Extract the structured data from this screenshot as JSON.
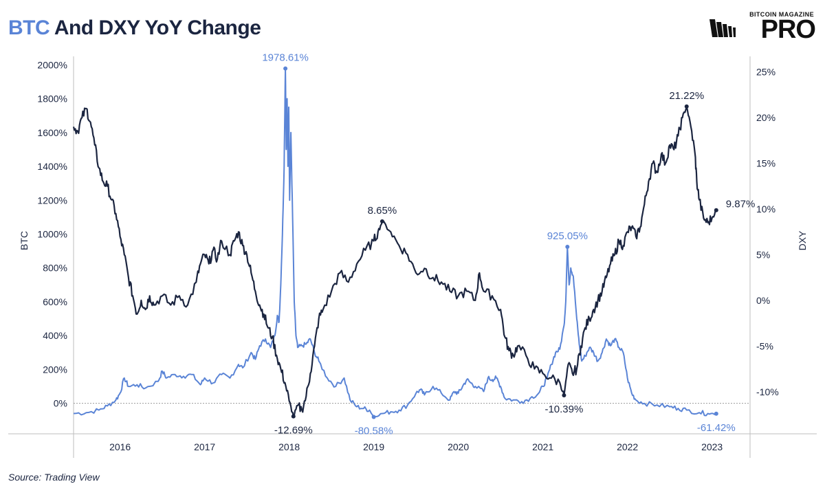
{
  "title": {
    "accent": "BTC",
    "rest": " And DXY YoY Change"
  },
  "logo": {
    "small": "BITCOIN MAGAZINE",
    "big": "PRO"
  },
  "source": "Source: Trading View",
  "colors": {
    "btc": "#5a84d6",
    "dxy": "#1b2540",
    "grid": "#bdbdbd"
  },
  "chart_data": {
    "type": "line",
    "title": "BTC And DXY YoY Change",
    "xlabel": "",
    "ylabel_left": "BTC",
    "ylabel_right": "DXY",
    "x_ticks": [
      "2016",
      "2017",
      "2018",
      "2019",
      "2020",
      "2021",
      "2022",
      "2023"
    ],
    "x_range": [
      2015.45,
      2023.45
    ],
    "y_left_ticks": [
      "0%",
      "200%",
      "400%",
      "600%",
      "800%",
      "1000%",
      "1200%",
      "1400%",
      "1600%",
      "1800%",
      "2000%"
    ],
    "y_left_range": [
      -180,
      2050
    ],
    "y_right_ticks": [
      "-10%",
      "-5%",
      "0%",
      "5%",
      "10%",
      "15%",
      "20%",
      "25%"
    ],
    "y_right_range": [
      -14.6,
      26.7
    ],
    "zero_line": true,
    "series": [
      {
        "name": "BTC",
        "axis": "left",
        "points": [
          [
            2015.45,
            -60
          ],
          [
            2015.6,
            -55
          ],
          [
            2015.75,
            -40
          ],
          [
            2015.85,
            -15
          ],
          [
            2015.95,
            20
          ],
          [
            2016.0,
            60
          ],
          [
            2016.05,
            150
          ],
          [
            2016.1,
            100
          ],
          [
            2016.2,
            110
          ],
          [
            2016.3,
            90
          ],
          [
            2016.45,
            130
          ],
          [
            2016.5,
            190
          ],
          [
            2016.55,
            150
          ],
          [
            2016.65,
            170
          ],
          [
            2016.75,
            160
          ],
          [
            2016.85,
            170
          ],
          [
            2016.95,
            110
          ],
          [
            2017.0,
            150
          ],
          [
            2017.1,
            120
          ],
          [
            2017.2,
            170
          ],
          [
            2017.3,
            150
          ],
          [
            2017.4,
            230
          ],
          [
            2017.45,
            210
          ],
          [
            2017.55,
            300
          ],
          [
            2017.6,
            260
          ],
          [
            2017.65,
            340
          ],
          [
            2017.72,
            380
          ],
          [
            2017.78,
            330
          ],
          [
            2017.83,
            400
          ],
          [
            2017.86,
            520
          ],
          [
            2017.88,
            480
          ],
          [
            2017.9,
            700
          ],
          [
            2017.92,
            1000
          ],
          [
            2017.94,
            1400
          ],
          [
            2017.955,
            1978.61
          ],
          [
            2017.965,
            1500
          ],
          [
            2017.975,
            1800
          ],
          [
            2017.985,
            1400
          ],
          [
            2017.995,
            1750
          ],
          [
            2018.005,
            1200
          ],
          [
            2018.02,
            1600
          ],
          [
            2018.04,
            1100
          ],
          [
            2018.06,
            600
          ],
          [
            2018.08,
            400
          ],
          [
            2018.1,
            330
          ],
          [
            2018.15,
            340
          ],
          [
            2018.2,
            350
          ],
          [
            2018.25,
            380
          ],
          [
            2018.3,
            300
          ],
          [
            2018.35,
            250
          ],
          [
            2018.45,
            150
          ],
          [
            2018.55,
            100
          ],
          [
            2018.65,
            150
          ],
          [
            2018.72,
            20
          ],
          [
            2018.8,
            -20
          ],
          [
            2018.88,
            -30
          ],
          [
            2018.95,
            -40
          ],
          [
            2019.0,
            -80.58
          ],
          [
            2019.1,
            -60
          ],
          [
            2019.2,
            -50
          ],
          [
            2019.3,
            -40
          ],
          [
            2019.4,
            -10
          ],
          [
            2019.5,
            60
          ],
          [
            2019.55,
            80
          ],
          [
            2019.6,
            50
          ],
          [
            2019.7,
            100
          ],
          [
            2019.8,
            60
          ],
          [
            2019.9,
            20
          ],
          [
            2019.95,
            70
          ],
          [
            2020.0,
            60
          ],
          [
            2020.05,
            100
          ],
          [
            2020.1,
            140
          ],
          [
            2020.15,
            120
          ],
          [
            2020.2,
            100
          ],
          [
            2020.3,
            70
          ],
          [
            2020.35,
            150
          ],
          [
            2020.4,
            140
          ],
          [
            2020.45,
            150
          ],
          [
            2020.5,
            100
          ],
          [
            2020.55,
            30
          ],
          [
            2020.65,
            20
          ],
          [
            2020.75,
            10
          ],
          [
            2020.85,
            30
          ],
          [
            2020.95,
            60
          ],
          [
            2021.0,
            100
          ],
          [
            2021.05,
            150
          ],
          [
            2021.1,
            230
          ],
          [
            2021.15,
            300
          ],
          [
            2021.2,
            320
          ],
          [
            2021.25,
            460
          ],
          [
            2021.27,
            600
          ],
          [
            2021.29,
            925.05
          ],
          [
            2021.31,
            700
          ],
          [
            2021.33,
            800
          ],
          [
            2021.36,
            750
          ],
          [
            2021.4,
            500
          ],
          [
            2021.43,
            350
          ],
          [
            2021.46,
            250
          ],
          [
            2021.5,
            280
          ],
          [
            2021.55,
            330
          ],
          [
            2021.6,
            300
          ],
          [
            2021.65,
            250
          ],
          [
            2021.7,
            300
          ],
          [
            2021.75,
            380
          ],
          [
            2021.8,
            340
          ],
          [
            2021.85,
            380
          ],
          [
            2021.9,
            330
          ],
          [
            2021.95,
            300
          ],
          [
            2022.0,
            150
          ],
          [
            2022.05,
            60
          ],
          [
            2022.1,
            20
          ],
          [
            2022.2,
            0
          ],
          [
            2022.35,
            -10
          ],
          [
            2022.5,
            -20
          ],
          [
            2022.6,
            -30
          ],
          [
            2022.7,
            -40
          ],
          [
            2022.85,
            -55
          ],
          [
            2022.95,
            -60
          ],
          [
            2023.05,
            -61.42
          ]
        ]
      },
      {
        "name": "DXY",
        "axis": "right",
        "points": [
          [
            2015.45,
            19
          ],
          [
            2015.5,
            18.5
          ],
          [
            2015.55,
            20
          ],
          [
            2015.6,
            21
          ],
          [
            2015.65,
            19.5
          ],
          [
            2015.7,
            17
          ],
          [
            2015.75,
            14.5
          ],
          [
            2015.8,
            13
          ],
          [
            2015.85,
            12.5
          ],
          [
            2015.9,
            11
          ],
          [
            2015.95,
            9.5
          ],
          [
            2016.0,
            7
          ],
          [
            2016.05,
            5
          ],
          [
            2016.1,
            2.5
          ],
          [
            2016.15,
            0.5
          ],
          [
            2016.2,
            -1.5
          ],
          [
            2016.25,
            0
          ],
          [
            2016.3,
            -1
          ],
          [
            2016.35,
            0.5
          ],
          [
            2016.4,
            -0.5
          ],
          [
            2016.5,
            0.5
          ],
          [
            2016.6,
            -0.5
          ],
          [
            2016.7,
            0.5
          ],
          [
            2016.8,
            -0.5
          ],
          [
            2016.9,
            2
          ],
          [
            2016.95,
            4
          ],
          [
            2017.0,
            5
          ],
          [
            2017.05,
            4
          ],
          [
            2017.1,
            5.5
          ],
          [
            2017.15,
            4.5
          ],
          [
            2017.2,
            6.5
          ],
          [
            2017.3,
            5
          ],
          [
            2017.35,
            6.5
          ],
          [
            2017.4,
            7.5
          ],
          [
            2017.45,
            6
          ],
          [
            2017.5,
            5
          ],
          [
            2017.55,
            3
          ],
          [
            2017.6,
            1
          ],
          [
            2017.65,
            -0.5
          ],
          [
            2017.7,
            -1.5
          ],
          [
            2017.75,
            -3
          ],
          [
            2017.8,
            -4
          ],
          [
            2017.85,
            -6
          ],
          [
            2017.9,
            -7.5
          ],
          [
            2017.95,
            -9
          ],
          [
            2018.0,
            -11
          ],
          [
            2018.05,
            -12.69
          ],
          [
            2018.1,
            -11.5
          ],
          [
            2018.15,
            -12
          ],
          [
            2018.2,
            -10.5
          ],
          [
            2018.25,
            -8
          ],
          [
            2018.3,
            -5
          ],
          [
            2018.35,
            -2
          ],
          [
            2018.4,
            -1
          ],
          [
            2018.5,
            1
          ],
          [
            2018.6,
            3
          ],
          [
            2018.7,
            2
          ],
          [
            2018.8,
            4
          ],
          [
            2018.9,
            5.5
          ],
          [
            2019.0,
            6.5
          ],
          [
            2019.05,
            7.5
          ],
          [
            2019.1,
            8.65
          ],
          [
            2019.2,
            7.5
          ],
          [
            2019.3,
            6
          ],
          [
            2019.4,
            5
          ],
          [
            2019.5,
            3
          ],
          [
            2019.6,
            3.5
          ],
          [
            2019.7,
            2.5
          ],
          [
            2019.8,
            2
          ],
          [
            2019.9,
            1
          ],
          [
            2020.0,
            0.5
          ],
          [
            2020.1,
            1
          ],
          [
            2020.2,
            0
          ],
          [
            2020.25,
            3
          ],
          [
            2020.3,
            1
          ],
          [
            2020.4,
            0.5
          ],
          [
            2020.5,
            -1
          ],
          [
            2020.55,
            -4
          ],
          [
            2020.6,
            -5.5
          ],
          [
            2020.65,
            -6
          ],
          [
            2020.7,
            -5
          ],
          [
            2020.8,
            -6
          ],
          [
            2020.9,
            -7.5
          ],
          [
            2021.0,
            -8
          ],
          [
            2021.1,
            -8.5
          ],
          [
            2021.2,
            -9
          ],
          [
            2021.25,
            -10.39
          ],
          [
            2021.3,
            -7
          ],
          [
            2021.35,
            -8
          ],
          [
            2021.4,
            -7.5
          ],
          [
            2021.45,
            -5
          ],
          [
            2021.5,
            -3
          ],
          [
            2021.55,
            -2
          ],
          [
            2021.6,
            -1
          ],
          [
            2021.65,
            0
          ],
          [
            2021.7,
            1
          ],
          [
            2021.75,
            2.5
          ],
          [
            2021.8,
            4
          ],
          [
            2021.85,
            5
          ],
          [
            2021.9,
            6.5
          ],
          [
            2021.95,
            6
          ],
          [
            2022.0,
            7.5
          ],
          [
            2022.05,
            8
          ],
          [
            2022.1,
            7
          ],
          [
            2022.15,
            8
          ],
          [
            2022.2,
            10.5
          ],
          [
            2022.25,
            13
          ],
          [
            2022.3,
            15
          ],
          [
            2022.35,
            14
          ],
          [
            2022.4,
            16
          ],
          [
            2022.45,
            15
          ],
          [
            2022.5,
            17
          ],
          [
            2022.55,
            16.5
          ],
          [
            2022.6,
            18
          ],
          [
            2022.65,
            20
          ],
          [
            2022.7,
            21.22
          ],
          [
            2022.75,
            19
          ],
          [
            2022.8,
            16
          ],
          [
            2022.82,
            13
          ],
          [
            2022.85,
            11
          ],
          [
            2022.9,
            9
          ],
          [
            2022.95,
            8.5
          ],
          [
            2023.0,
            9
          ],
          [
            2023.05,
            9.87
          ]
        ]
      }
    ],
    "annotations": [
      {
        "text": "1978.61%",
        "series": "BTC",
        "x": 2017.955,
        "y": 1978.61,
        "position": "above"
      },
      {
        "text": "925.05%",
        "series": "BTC",
        "x": 2021.29,
        "y": 925.05,
        "position": "above"
      },
      {
        "text": "-80.58%",
        "series": "BTC",
        "x": 2019.0,
        "y": -80.58,
        "position": "below"
      },
      {
        "text": "-61.42%",
        "series": "BTC",
        "x": 2023.05,
        "y": -61.42,
        "position": "below"
      },
      {
        "text": "8.65%",
        "series": "DXY",
        "x": 2019.1,
        "y": 8.65,
        "position": "above"
      },
      {
        "text": "21.22%",
        "series": "DXY",
        "x": 2022.7,
        "y": 21.22,
        "position": "above"
      },
      {
        "text": "-12.69%",
        "series": "DXY",
        "x": 2018.05,
        "y": -12.69,
        "position": "below"
      },
      {
        "text": "-10.39%",
        "series": "DXY",
        "x": 2021.25,
        "y": -10.39,
        "position": "below"
      },
      {
        "text": "9.87%",
        "series": "DXY",
        "x": 2023.05,
        "y": 9.87,
        "position": "right"
      }
    ]
  }
}
